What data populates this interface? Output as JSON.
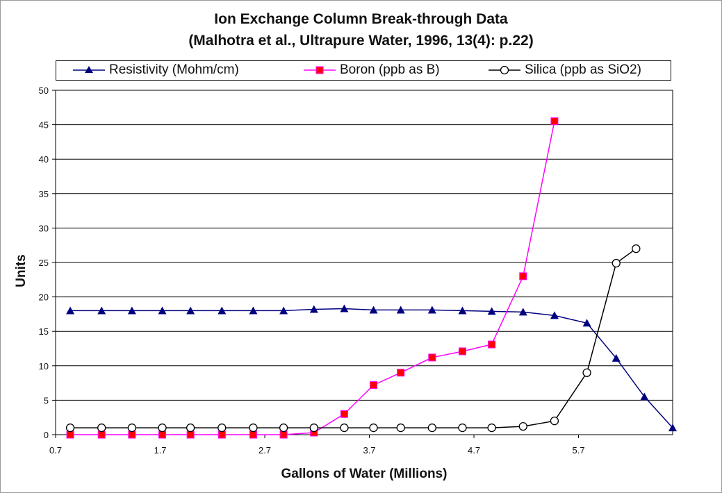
{
  "chart_data": {
    "type": "line",
    "title": "Ion Exchange Column Break-through Data",
    "subtitle": "(Malhotra et al., Ultrapure Water, 1996, 13(4): p.22)",
    "xlabel": "Gallons of Water (Millions)",
    "ylabel": "Units",
    "xlim": [
      0.7,
      6.6
    ],
    "ylim": [
      0,
      50
    ],
    "xticks": [
      "0.7",
      "1.7",
      "2.7",
      "3.7",
      "4.7",
      "5.7"
    ],
    "yticks": [
      "0",
      "5",
      "10",
      "15",
      "20",
      "25",
      "30",
      "35",
      "40",
      "45",
      "50"
    ],
    "grid": "horizontal",
    "legend": "top",
    "series": [
      {
        "name": "Resistivity (Mohm/cm)",
        "color": "#00007f",
        "marker": "triangle",
        "x": [
          0.84,
          1.14,
          1.43,
          1.72,
          1.99,
          2.29,
          2.59,
          2.88,
          3.17,
          3.46,
          3.74,
          4.0,
          4.3,
          4.59,
          4.87,
          5.17,
          5.47,
          5.78,
          6.06,
          6.33,
          6.6
        ],
        "y": [
          18.0,
          18.0,
          18.0,
          18.0,
          18.0,
          18.0,
          18.0,
          18.0,
          18.2,
          18.3,
          18.1,
          18.1,
          18.1,
          18.0,
          17.9,
          17.8,
          17.3,
          16.2,
          11.1,
          5.5,
          1.0
        ]
      },
      {
        "name": "Boron (ppb as B)",
        "color": "#ff00ff",
        "marker": "square",
        "markerColor": "#ff0000",
        "x": [
          0.84,
          1.14,
          1.43,
          1.72,
          1.99,
          2.29,
          2.59,
          2.88,
          3.17,
          3.46,
          3.74,
          4.0,
          4.3,
          4.59,
          4.87,
          5.17,
          5.47
        ],
        "y": [
          0.0,
          0.0,
          0.0,
          0.0,
          0.0,
          0.0,
          0.0,
          0.0,
          0.3,
          3.0,
          7.2,
          9.0,
          11.2,
          12.1,
          13.1,
          23.0,
          45.5
        ]
      },
      {
        "name": "Silica (ppb as SiO2)",
        "color": "#000000",
        "marker": "circle",
        "x": [
          0.84,
          1.14,
          1.43,
          1.72,
          1.99,
          2.29,
          2.59,
          2.88,
          3.17,
          3.46,
          3.74,
          4.0,
          4.3,
          4.59,
          4.87,
          5.17,
          5.47,
          5.78,
          6.06,
          6.25
        ],
        "y": [
          1.0,
          1.0,
          1.0,
          1.0,
          1.0,
          1.0,
          1.0,
          1.0,
          1.0,
          1.0,
          1.0,
          1.0,
          1.0,
          1.0,
          1.0,
          1.2,
          2.0,
          9.0,
          24.9,
          27.0
        ]
      }
    ]
  }
}
